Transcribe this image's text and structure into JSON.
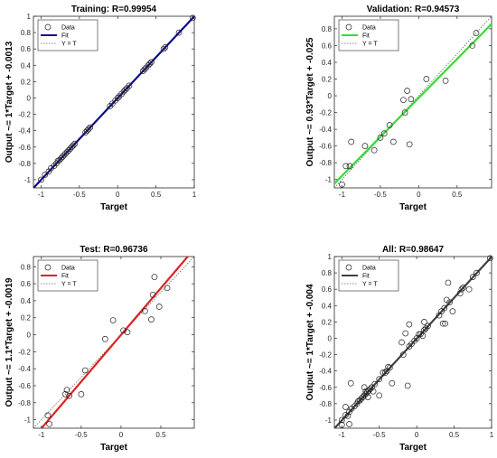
{
  "figure": {
    "panels": [
      {
        "title": "Training: R=0.99954",
        "ylabel": "Output ~= 1*Target + -0.0013",
        "xlabel": "Target",
        "fit_color": "#0b0b8a"
      },
      {
        "title": "Validation: R=0.94573",
        "ylabel": "Output ~= 0.93*Target + -0.025",
        "xlabel": "Target",
        "fit_color": "#33dd33"
      },
      {
        "title": "Test: R=0.96736",
        "ylabel": "Output ~= 1.1*Target + -0.0019",
        "xlabel": "Target",
        "fit_color": "#dd2222"
      },
      {
        "title": "All: R=0.98647",
        "ylabel": "Output ~= 1*Target + -0.004",
        "xlabel": "Target",
        "fit_color": "#404040"
      }
    ],
    "legend": {
      "data": "Data",
      "fit": "Fit",
      "identity": "Y = T"
    }
  },
  "chart_data": [
    {
      "type": "scatter",
      "title": "Training: R=0.99954",
      "xlabel": "Target",
      "ylabel": "Output ~= 1*Target + -0.0013",
      "xlim": [
        -1.1,
        1.0
      ],
      "ylim": [
        -1.1,
        1.0
      ],
      "xticks": [
        -1,
        -0.5,
        0,
        0.5,
        1
      ],
      "yticks": [
        -1,
        -0.8,
        -0.6,
        -0.4,
        -0.2,
        0,
        0.2,
        0.4,
        0.6,
        0.8,
        1
      ],
      "legend": "top-left",
      "series": [
        {
          "name": "Data",
          "points": [
            [
              -1.0,
              -1.0
            ],
            [
              -0.95,
              -0.94
            ],
            [
              -0.9,
              -0.9
            ],
            [
              -0.87,
              -0.86
            ],
            [
              -0.83,
              -0.83
            ],
            [
              -0.8,
              -0.8
            ],
            [
              -0.78,
              -0.77
            ],
            [
              -0.76,
              -0.76
            ],
            [
              -0.74,
              -0.74
            ],
            [
              -0.72,
              -0.72
            ],
            [
              -0.7,
              -0.7
            ],
            [
              -0.68,
              -0.68
            ],
            [
              -0.66,
              -0.66
            ],
            [
              -0.64,
              -0.64
            ],
            [
              -0.62,
              -0.62
            ],
            [
              -0.6,
              -0.6
            ],
            [
              -0.58,
              -0.58
            ],
            [
              -0.56,
              -0.56
            ],
            [
              -0.42,
              -0.42
            ],
            [
              -0.4,
              -0.4
            ],
            [
              -0.38,
              -0.38
            ],
            [
              -0.36,
              -0.36
            ],
            [
              -0.1,
              -0.1
            ],
            [
              -0.07,
              -0.07
            ],
            [
              -0.03,
              -0.03
            ],
            [
              0.0,
              0.0
            ],
            [
              0.02,
              0.02
            ],
            [
              0.05,
              0.05
            ],
            [
              0.08,
              0.08
            ],
            [
              0.1,
              0.1
            ],
            [
              0.12,
              0.12
            ],
            [
              0.15,
              0.15
            ],
            [
              0.33,
              0.33
            ],
            [
              0.35,
              0.35
            ],
            [
              0.37,
              0.37
            ],
            [
              0.4,
              0.4
            ],
            [
              0.42,
              0.42
            ],
            [
              0.44,
              0.44
            ],
            [
              0.6,
              0.6
            ],
            [
              0.62,
              0.62
            ],
            [
              0.8,
              0.8
            ],
            [
              0.98,
              0.98
            ]
          ]
        },
        {
          "name": "Fit",
          "slope": 1.0,
          "intercept": -0.0013
        },
        {
          "name": "Y = T",
          "slope": 1.0,
          "intercept": 0.0
        }
      ]
    },
    {
      "type": "scatter",
      "title": "Validation: R=0.94573",
      "xlabel": "Target",
      "ylabel": "Output ~= 0.93*Target + -0.025",
      "xlim": [
        -1.1,
        0.95
      ],
      "ylim": [
        -1.1,
        0.95
      ],
      "xticks": [
        -1,
        -0.5,
        0,
        0.5
      ],
      "yticks": [
        -1,
        -0.8,
        -0.6,
        -0.4,
        -0.2,
        0,
        0.2,
        0.4,
        0.6,
        0.8
      ],
      "legend": "top-left",
      "series": [
        {
          "name": "Data",
          "points": [
            [
              -1.0,
              -1.06
            ],
            [
              -0.95,
              -0.84
            ],
            [
              -0.9,
              -0.84
            ],
            [
              -0.88,
              -0.55
            ],
            [
              -0.7,
              -0.6
            ],
            [
              -0.58,
              -0.65
            ],
            [
              -0.5,
              -0.5
            ],
            [
              -0.45,
              -0.45
            ],
            [
              -0.38,
              -0.35
            ],
            [
              -0.33,
              -0.55
            ],
            [
              -0.2,
              -0.05
            ],
            [
              -0.18,
              -0.2
            ],
            [
              -0.15,
              0.06
            ],
            [
              -0.12,
              -0.58
            ],
            [
              -0.1,
              -0.04
            ],
            [
              0.1,
              0.2
            ],
            [
              0.35,
              0.18
            ],
            [
              0.7,
              0.6
            ],
            [
              0.75,
              0.75
            ]
          ]
        },
        {
          "name": "Fit",
          "slope": 0.93,
          "intercept": -0.025
        },
        {
          "name": "Y = T",
          "slope": 1.0,
          "intercept": 0.0
        }
      ]
    },
    {
      "type": "scatter",
      "title": "Test: R=0.96736",
      "xlabel": "Target",
      "ylabel": "Output ~= 1.1*Target + -0.0019",
      "xlim": [
        -1.1,
        0.92
      ],
      "ylim": [
        -1.1,
        0.92
      ],
      "xticks": [
        -1,
        -0.5,
        0,
        0.5
      ],
      "yticks": [
        -1,
        -0.8,
        -0.6,
        -0.4,
        -0.2,
        0,
        0.2,
        0.4,
        0.6,
        0.8
      ],
      "legend": "top-left",
      "series": [
        {
          "name": "Data",
          "points": [
            [
              -0.92,
              -0.95
            ],
            [
              -0.9,
              -1.05
            ],
            [
              -0.7,
              -0.7
            ],
            [
              -0.68,
              -0.65
            ],
            [
              -0.65,
              -0.72
            ],
            [
              -0.5,
              -0.7
            ],
            [
              -0.45,
              -0.42
            ],
            [
              -0.2,
              -0.05
            ],
            [
              -0.1,
              0.17
            ],
            [
              0.03,
              0.05
            ],
            [
              0.08,
              0.03
            ],
            [
              0.3,
              0.28
            ],
            [
              0.38,
              0.18
            ],
            [
              0.4,
              0.47
            ],
            [
              0.42,
              0.68
            ],
            [
              0.48,
              0.33
            ],
            [
              0.58,
              0.55
            ]
          ]
        },
        {
          "name": "Fit",
          "slope": 1.1,
          "intercept": -0.0019
        },
        {
          "name": "Y = T",
          "slope": 1.0,
          "intercept": 0.0
        }
      ]
    },
    {
      "type": "scatter",
      "title": "All: R=0.98647",
      "xlabel": "Target",
      "ylabel": "Output ~= 1*Target + -0.004",
      "xlim": [
        -1.1,
        1.0
      ],
      "ylim": [
        -1.1,
        1.0
      ],
      "xticks": [
        -1,
        -0.5,
        0,
        0.5,
        1
      ],
      "yticks": [
        -1,
        -0.8,
        -0.6,
        -0.4,
        -0.2,
        0,
        0.2,
        0.4,
        0.6,
        0.8,
        1
      ],
      "legend": "top-left",
      "series": [
        {
          "name": "Data",
          "points": [
            [
              -1.0,
              -1.0
            ],
            [
              -1.0,
              -1.06
            ],
            [
              -0.95,
              -0.94
            ],
            [
              -0.95,
              -0.84
            ],
            [
              -0.92,
              -0.95
            ],
            [
              -0.9,
              -0.9
            ],
            [
              -0.9,
              -1.05
            ],
            [
              -0.88,
              -0.55
            ],
            [
              -0.87,
              -0.86
            ],
            [
              -0.83,
              -0.83
            ],
            [
              -0.8,
              -0.8
            ],
            [
              -0.78,
              -0.77
            ],
            [
              -0.76,
              -0.76
            ],
            [
              -0.74,
              -0.74
            ],
            [
              -0.72,
              -0.72
            ],
            [
              -0.7,
              -0.7
            ],
            [
              -0.7,
              -0.6
            ],
            [
              -0.68,
              -0.68
            ],
            [
              -0.68,
              -0.65
            ],
            [
              -0.66,
              -0.66
            ],
            [
              -0.65,
              -0.72
            ],
            [
              -0.64,
              -0.64
            ],
            [
              -0.62,
              -0.62
            ],
            [
              -0.6,
              -0.6
            ],
            [
              -0.58,
              -0.65
            ],
            [
              -0.56,
              -0.56
            ],
            [
              -0.5,
              -0.5
            ],
            [
              -0.5,
              -0.7
            ],
            [
              -0.45,
              -0.42
            ],
            [
              -0.42,
              -0.42
            ],
            [
              -0.4,
              -0.4
            ],
            [
              -0.38,
              -0.35
            ],
            [
              -0.36,
              -0.36
            ],
            [
              -0.33,
              -0.55
            ],
            [
              -0.2,
              -0.05
            ],
            [
              -0.18,
              -0.2
            ],
            [
              -0.15,
              0.06
            ],
            [
              -0.12,
              -0.58
            ],
            [
              -0.1,
              -0.1
            ],
            [
              -0.1,
              0.17
            ],
            [
              -0.07,
              -0.07
            ],
            [
              -0.03,
              -0.03
            ],
            [
              0.0,
              0.0
            ],
            [
              0.03,
              0.05
            ],
            [
              0.05,
              0.05
            ],
            [
              0.08,
              0.03
            ],
            [
              0.1,
              0.1
            ],
            [
              0.1,
              0.2
            ],
            [
              0.12,
              0.12
            ],
            [
              0.15,
              0.15
            ],
            [
              0.3,
              0.28
            ],
            [
              0.33,
              0.33
            ],
            [
              0.35,
              0.18
            ],
            [
              0.37,
              0.37
            ],
            [
              0.38,
              0.18
            ],
            [
              0.4,
              0.47
            ],
            [
              0.42,
              0.68
            ],
            [
              0.44,
              0.44
            ],
            [
              0.48,
              0.33
            ],
            [
              0.58,
              0.55
            ],
            [
              0.6,
              0.6
            ],
            [
              0.62,
              0.62
            ],
            [
              0.7,
              0.6
            ],
            [
              0.75,
              0.75
            ],
            [
              0.8,
              0.8
            ],
            [
              0.98,
              0.98
            ]
          ]
        },
        {
          "name": "Fit",
          "slope": 1.0,
          "intercept": -0.004
        },
        {
          "name": "Y = T",
          "slope": 1.0,
          "intercept": 0.0
        }
      ]
    }
  ]
}
